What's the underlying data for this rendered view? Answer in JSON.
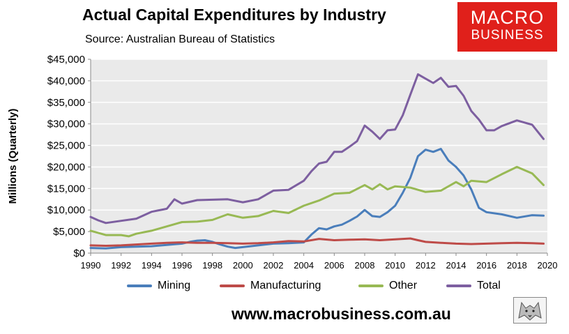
{
  "header": {
    "title": "Actual Capital Expenditures by Industry",
    "subtitle": "Source: Australian Bureau of Statistics"
  },
  "logo": {
    "line1": "MACRO",
    "line2": "BUSINESS"
  },
  "footer": {
    "url": "www.macrobusiness.com.au"
  },
  "colors": {
    "mining": "#4a7ebb",
    "manufacturing": "#be4b48",
    "other": "#98b954",
    "total": "#7d5fa0",
    "plot_bg": "#eaeaea",
    "brand_red": "#e0201b"
  },
  "chart_data": {
    "type": "line",
    "title": "Actual Capital Expenditures by Industry",
    "subtitle": "Source: Australian Bureau of Statistics",
    "xlabel": "",
    "ylabel": "Millions (Quarterly)",
    "xlim": [
      1990,
      2020
    ],
    "ylim": [
      0,
      45000
    ],
    "x_ticks": [
      1990,
      1992,
      1994,
      1996,
      1998,
      2000,
      2002,
      2004,
      2006,
      2008,
      2010,
      2012,
      2014,
      2016,
      2018,
      2020
    ],
    "y_ticks": [
      0,
      5000,
      10000,
      15000,
      20000,
      25000,
      30000,
      35000,
      40000,
      45000
    ],
    "x_tick_labels": [
      "1990",
      "1992",
      "1994",
      "1996",
      "1998",
      "2000",
      "2002",
      "2004",
      "2006",
      "2008",
      "2010",
      "2012",
      "2014",
      "2016",
      "2018",
      "2020"
    ],
    "y_tick_labels": [
      "$0",
      "$5,000",
      "$10,000",
      "$15,000",
      "$20,000",
      "$25,000",
      "$30,000",
      "$35,000",
      "$40,000",
      "$45,000"
    ],
    "legend_position": "bottom",
    "series": [
      {
        "name": "Mining",
        "x": [
          1990,
          1991,
          1992,
          1993,
          1994,
          1995,
          1996,
          1996.5,
          1997,
          1997.5,
          1998,
          1998.5,
          1999,
          1999.5,
          2000,
          2001,
          2002,
          2003,
          2004,
          2004.5,
          2005,
          2005.5,
          2006,
          2006.5,
          2007,
          2007.5,
          2008,
          2008.5,
          2009,
          2009.5,
          2010,
          2010.5,
          2011,
          2011.5,
          2012,
          2012.5,
          2013,
          2013.5,
          2014,
          2014.5,
          2015,
          2015.5,
          2016,
          2017,
          2018,
          2019,
          2019.75
        ],
        "values": [
          1200,
          1100,
          1400,
          1500,
          1600,
          1900,
          2200,
          2600,
          2900,
          3000,
          2600,
          2000,
          1500,
          1200,
          1400,
          1800,
          2200,
          2300,
          2500,
          4300,
          5800,
          5500,
          6200,
          6600,
          7500,
          8500,
          10000,
          8600,
          8400,
          9500,
          11000,
          14000,
          17500,
          22500,
          24000,
          23500,
          24200,
          21500,
          20000,
          18000,
          14800,
          10500,
          9500,
          9000,
          8200,
          8800,
          8700
        ]
      },
      {
        "name": "Manufacturing",
        "x": [
          1990,
          1991,
          1992,
          1993,
          1994,
          1995,
          1996,
          1997,
          1998,
          1999,
          2000,
          2001,
          2002,
          2003,
          2004,
          2005,
          2006,
          2007,
          2008,
          2009,
          2010,
          2011,
          2011.5,
          2012,
          2013,
          2014,
          2015,
          2016,
          2017,
          2018,
          2019,
          2019.75
        ],
        "values": [
          1800,
          1700,
          1800,
          2000,
          2200,
          2400,
          2500,
          2400,
          2400,
          2300,
          2200,
          2300,
          2500,
          2800,
          2700,
          3300,
          3000,
          3100,
          3200,
          3000,
          3200,
          3400,
          3000,
          2600,
          2400,
          2200,
          2100,
          2200,
          2300,
          2400,
          2300,
          2200
        ]
      },
      {
        "name": "Other",
        "x": [
          1990,
          1991,
          1992,
          1992.5,
          1993,
          1994,
          1995,
          1996,
          1997,
          1998,
          1999,
          2000,
          2001,
          2002,
          2003,
          2004,
          2005,
          2006,
          2007,
          2008,
          2008.5,
          2009,
          2009.5,
          2010,
          2011,
          2012,
          2013,
          2014,
          2014.5,
          2015,
          2016,
          2017,
          2018,
          2019,
          2019.75
        ],
        "values": [
          5200,
          4200,
          4200,
          3900,
          4500,
          5200,
          6200,
          7200,
          7300,
          7700,
          9000,
          8200,
          8600,
          9800,
          9300,
          11000,
          12200,
          13800,
          14000,
          15800,
          14800,
          16000,
          14800,
          15500,
          15200,
          14200,
          14500,
          16500,
          15500,
          16800,
          16500,
          18300,
          20000,
          18500,
          15800
        ]
      },
      {
        "name": "Total",
        "x": [
          1990,
          1990.5,
          1991,
          1992,
          1993,
          1994,
          1995,
          1995.5,
          1996,
          1997,
          1998,
          1999,
          2000,
          2001,
          2002,
          2003,
          2004,
          2004.5,
          2005,
          2005.5,
          2006,
          2006.5,
          2007,
          2007.5,
          2008,
          2008.5,
          2009,
          2009.5,
          2010,
          2010.5,
          2011,
          2011.5,
          2012,
          2012.5,
          2013,
          2013.5,
          2014,
          2014.5,
          2015,
          2015.5,
          2016,
          2016.5,
          2017,
          2018,
          2019,
          2019.75
        ],
        "values": [
          8400,
          7600,
          7000,
          7500,
          8000,
          9600,
          10300,
          12500,
          11500,
          12300,
          12400,
          12500,
          11800,
          12500,
          14500,
          14700,
          16800,
          19000,
          20800,
          21200,
          23500,
          23500,
          24700,
          26000,
          29600,
          28200,
          26500,
          28500,
          28700,
          32000,
          36800,
          41500,
          40500,
          39500,
          40700,
          38600,
          38800,
          36500,
          33000,
          31000,
          28500,
          28500,
          29500,
          30800,
          29800,
          26500
        ]
      }
    ]
  }
}
